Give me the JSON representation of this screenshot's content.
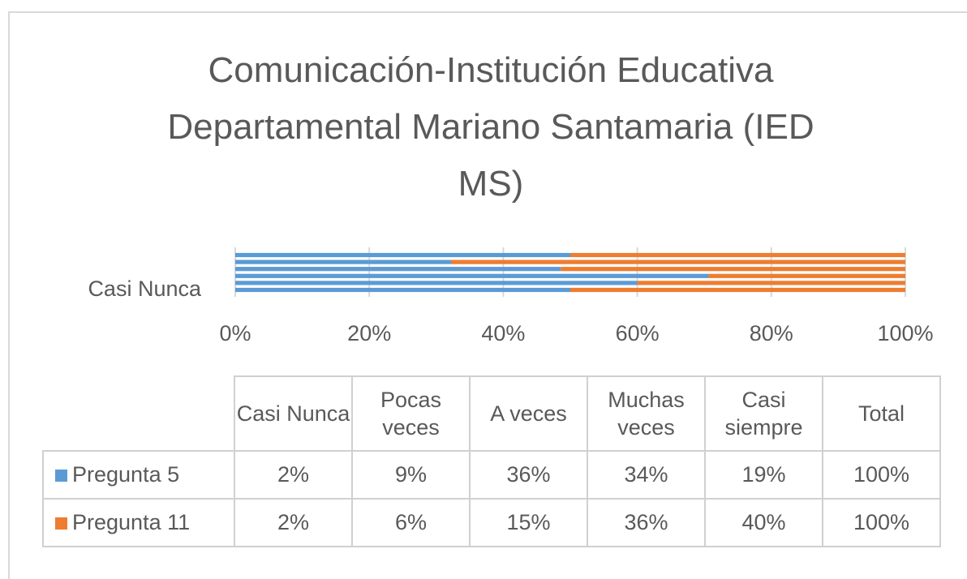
{
  "chart_data": {
    "type": "bar",
    "orientation": "horizontal",
    "stacked": "percent",
    "title": "Comunicación-Institución Educativa Departamental Mariano Santamaria (IED MS)",
    "categories": [
      "Casi Nunca",
      "Pocas veces",
      "A veces",
      "Muchas veces",
      "Casi siempre",
      "Total"
    ],
    "series": [
      {
        "name": "Pregunta 5",
        "color": "#5b9bd5",
        "values": [
          2,
          9,
          36,
          34,
          19,
          100
        ],
        "value_labels": [
          "2%",
          "9%",
          "36%",
          "34%",
          "19%",
          "100%"
        ]
      },
      {
        "name": "Pregunta 11",
        "color": "#ed7d31",
        "values": [
          2,
          6,
          15,
          36,
          40,
          100
        ],
        "value_labels": [
          "2%",
          "6%",
          "15%",
          "36%",
          "40%",
          "100%"
        ]
      }
    ],
    "xlim": [
      0,
      100
    ],
    "xticks": [
      {
        "value": 0,
        "label": "0%"
      },
      {
        "value": 20,
        "label": "20%"
      },
      {
        "value": 40,
        "label": "40%"
      },
      {
        "value": 60,
        "label": "60%"
      },
      {
        "value": 80,
        "label": "80%"
      },
      {
        "value": 100,
        "label": "100%"
      }
    ],
    "grid": true
  }
}
